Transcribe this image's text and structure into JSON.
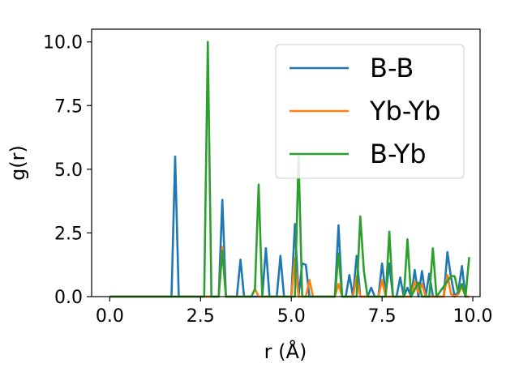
{
  "chart_data": {
    "type": "line",
    "title": "",
    "xlabel": "r (Å)",
    "ylabel": "g(r)",
    "xlim": [
      -0.5,
      10.2
    ],
    "ylim": [
      0,
      10.5
    ],
    "xticks": [
      0.0,
      2.5,
      5.0,
      7.5,
      10.0
    ],
    "xtick_labels": [
      "0.0",
      "2.5",
      "5.0",
      "7.5",
      "10.0"
    ],
    "yticks": [
      0.0,
      2.5,
      5.0,
      7.5,
      10.0
    ],
    "ytick_labels": [
      "0.0",
      "2.5",
      "5.0",
      "7.5",
      "10.0"
    ],
    "grid": false,
    "legend_position": "top-right",
    "series": [
      {
        "name": "B-B",
        "color": "#1f77b4",
        "points": [
          [
            0,
            0
          ],
          [
            1.7,
            0
          ],
          [
            1.8,
            5.5
          ],
          [
            1.9,
            0
          ],
          [
            3.0,
            0
          ],
          [
            3.1,
            3.8
          ],
          [
            3.2,
            0
          ],
          [
            3.5,
            0
          ],
          [
            3.6,
            1.45
          ],
          [
            3.7,
            0
          ],
          [
            4.2,
            0
          ],
          [
            4.3,
            1.9
          ],
          [
            4.4,
            0
          ],
          [
            4.6,
            0
          ],
          [
            4.7,
            1.6
          ],
          [
            4.8,
            0
          ],
          [
            5.0,
            0
          ],
          [
            5.1,
            2.85
          ],
          [
            5.2,
            0
          ],
          [
            5.3,
            1.3
          ],
          [
            5.4,
            1.25
          ],
          [
            5.5,
            0
          ],
          [
            6.2,
            0
          ],
          [
            6.3,
            2.8
          ],
          [
            6.4,
            0
          ],
          [
            6.5,
            0
          ],
          [
            6.6,
            0.85
          ],
          [
            6.7,
            0
          ],
          [
            6.8,
            1.6
          ],
          [
            6.9,
            0
          ],
          [
            7.1,
            0
          ],
          [
            7.2,
            0.35
          ],
          [
            7.3,
            0
          ],
          [
            7.4,
            0
          ],
          [
            7.5,
            1.3
          ],
          [
            7.6,
            0.1
          ],
          [
            7.7,
            1.3
          ],
          [
            7.8,
            0
          ],
          [
            7.9,
            0
          ],
          [
            8.0,
            0.75
          ],
          [
            8.1,
            0
          ],
          [
            8.2,
            0.35
          ],
          [
            8.3,
            0
          ],
          [
            8.4,
            1.05
          ],
          [
            8.5,
            0
          ],
          [
            8.6,
            1.0
          ],
          [
            8.7,
            0
          ],
          [
            8.8,
            0.9
          ],
          [
            8.9,
            0
          ],
          [
            9.2,
            0
          ],
          [
            9.3,
            1.75
          ],
          [
            9.4,
            0.75
          ],
          [
            9.5,
            0
          ],
          [
            9.6,
            0.2
          ],
          [
            9.7,
            1.2
          ],
          [
            9.8,
            0
          ],
          [
            9.9,
            0
          ]
        ]
      },
      {
        "name": "Yb-Yb",
        "color": "#ff7f0e",
        "points": [
          [
            0,
            0
          ],
          [
            3.0,
            0
          ],
          [
            3.1,
            1.95
          ],
          [
            3.2,
            0
          ],
          [
            3.9,
            0
          ],
          [
            4.0,
            0.3
          ],
          [
            4.1,
            0
          ],
          [
            5.0,
            0
          ],
          [
            5.1,
            1.5
          ],
          [
            5.2,
            0
          ],
          [
            5.4,
            0
          ],
          [
            5.5,
            0.65
          ],
          [
            5.6,
            0
          ],
          [
            6.2,
            0
          ],
          [
            6.3,
            0.5
          ],
          [
            6.4,
            0
          ],
          [
            6.7,
            0
          ],
          [
            6.8,
            0.8
          ],
          [
            6.9,
            0
          ],
          [
            7.4,
            0
          ],
          [
            7.5,
            0.65
          ],
          [
            7.6,
            0
          ],
          [
            8.3,
            0
          ],
          [
            8.4,
            0.6
          ],
          [
            8.5,
            0.15
          ],
          [
            8.6,
            0.5
          ],
          [
            8.7,
            0
          ],
          [
            9.2,
            0
          ],
          [
            9.3,
            0.85
          ],
          [
            9.4,
            0.1
          ],
          [
            9.5,
            0
          ],
          [
            9.6,
            0.1
          ],
          [
            9.7,
            0.4
          ],
          [
            9.8,
            0
          ],
          [
            9.9,
            0
          ]
        ]
      },
      {
        "name": "B-Yb",
        "color": "#2ca02c",
        "points": [
          [
            0,
            0
          ],
          [
            2.6,
            0
          ],
          [
            2.7,
            10.0
          ],
          [
            2.8,
            0
          ],
          [
            3.0,
            0
          ],
          [
            3.1,
            1.8
          ],
          [
            3.2,
            0
          ],
          [
            3.9,
            0
          ],
          [
            4.0,
            0.3
          ],
          [
            4.1,
            4.4
          ],
          [
            4.2,
            0
          ],
          [
            5.1,
            0
          ],
          [
            5.2,
            5.5
          ],
          [
            5.3,
            0
          ],
          [
            6.2,
            0
          ],
          [
            6.3,
            1.7
          ],
          [
            6.4,
            0
          ],
          [
            6.8,
            0
          ],
          [
            6.9,
            3.15
          ],
          [
            7.0,
            1.0
          ],
          [
            7.1,
            0
          ],
          [
            7.6,
            0
          ],
          [
            7.7,
            2.55
          ],
          [
            7.8,
            0
          ],
          [
            8.1,
            0
          ],
          [
            8.2,
            2.25
          ],
          [
            8.3,
            0
          ],
          [
            8.5,
            0.55
          ],
          [
            8.6,
            0
          ],
          [
            8.8,
            0
          ],
          [
            8.9,
            1.9
          ],
          [
            9.0,
            0
          ],
          [
            9.3,
            0.6
          ],
          [
            9.4,
            0.8
          ],
          [
            9.5,
            0.8
          ],
          [
            9.6,
            0.15
          ],
          [
            9.7,
            0.5
          ],
          [
            9.8,
            0
          ],
          [
            9.9,
            1.55
          ]
        ]
      }
    ]
  }
}
